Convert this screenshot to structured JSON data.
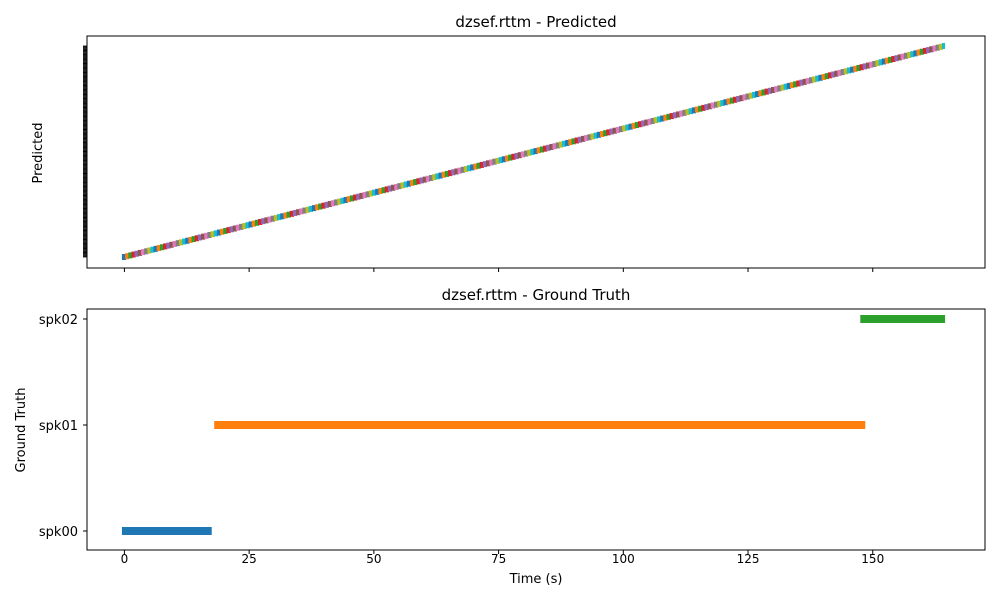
{
  "chart_data": [
    {
      "type": "timeline",
      "title": "dzsef.rttm - Predicted",
      "xlabel": "",
      "ylabel": "Predicted",
      "xlim": [
        -7.5,
        172.5
      ],
      "xticks": [
        0,
        25,
        50,
        75,
        100,
        125,
        150
      ],
      "tick_labels_visible": false,
      "x_start": -0.5,
      "x_end": 164.5,
      "segment_count": 260,
      "palette": [
        "#1f77b4",
        "#ff7f0e",
        "#2ca02c",
        "#d62728",
        "#9467bd",
        "#8c564b",
        "#e377c2",
        "#7f7f7f",
        "#bcbd22",
        "#17becf"
      ]
    },
    {
      "type": "timeline",
      "title": "dzsef.rttm - Ground Truth",
      "xlabel": "Time (s)",
      "ylabel": "Ground Truth",
      "xlim": [
        -7.5,
        172.5
      ],
      "xticks": [
        0,
        25,
        50,
        75,
        100,
        125,
        150
      ],
      "categories": [
        "spk00",
        "spk01",
        "spk02"
      ],
      "segments": [
        {
          "speaker": "spk00",
          "start": -0.5,
          "end": 17.5,
          "color": "#1f77b4"
        },
        {
          "speaker": "spk01",
          "start": 18.0,
          "end": 148.5,
          "color": "#ff7f0e"
        },
        {
          "speaker": "spk02",
          "start": 147.5,
          "end": 164.5,
          "color": "#2ca02c"
        }
      ]
    }
  ]
}
